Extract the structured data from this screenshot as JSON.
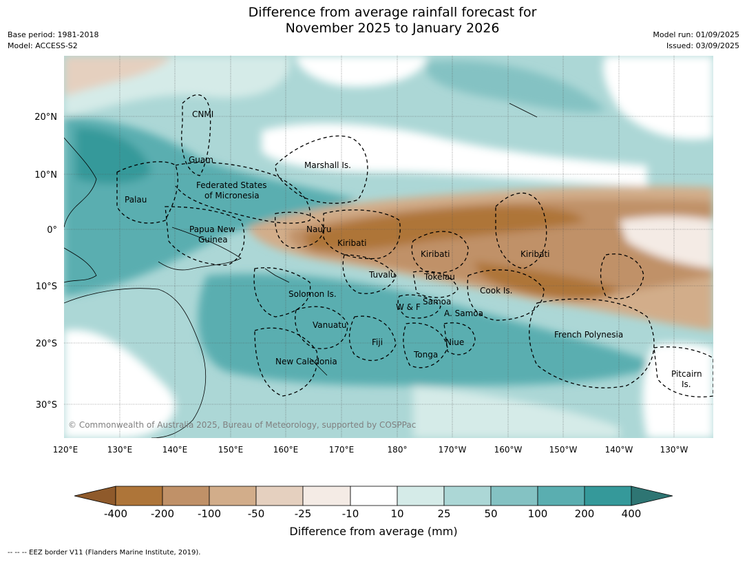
{
  "title": {
    "line1": "Difference from average rainfall forecast for",
    "line2": "November 2025 to January 2026"
  },
  "meta_left": {
    "base_period": "Base period: 1981-2018",
    "model": "Model: ACCESS-S2"
  },
  "meta_right": {
    "model_run": "Model run: 01/09/2025",
    "issued": "Issued: 03/09/2025"
  },
  "axes": {
    "lat_labels": [
      "20°N",
      "10°N",
      "0°",
      "10°S",
      "20°S",
      "30°S"
    ],
    "lon_labels": [
      "120°E",
      "130°E",
      "140°E",
      "150°E",
      "160°E",
      "170°E",
      "180°",
      "170°W",
      "160°W",
      "150°W",
      "140°W",
      "130°W"
    ]
  },
  "regions": [
    "CNMI",
    "Guam",
    "Marshall Is.",
    "Federated States",
    "of Micronesia",
    "Palau",
    "Papua New",
    "Guinea",
    "Nauru",
    "Kiribati",
    "Kiribati",
    "Kiribati",
    "Tuvalu",
    "Tokelau",
    "Cook Is.",
    "Solomon Is.",
    "W & F",
    "Samoa",
    "A. Samoa",
    "Vanuatu",
    "Fiji",
    "Niue",
    "Tonga",
    "French Polynesia",
    "New Caledonia",
    "Pitcairn",
    "Is."
  ],
  "copyright": "© Commonwealth of Australia 2025, Bureau of Meteorology, supported by COSPPac",
  "colorbar": {
    "ticks": [
      "-400",
      "-200",
      "-100",
      "-50",
      "-25",
      "-10",
      "10",
      "25",
      "50",
      "100",
      "200",
      "400"
    ],
    "colors": [
      "#8f5a2b",
      "#ae7539",
      "#c09168",
      "#d2ad8a",
      "#e5d0bf",
      "#f4ebe5",
      "#ffffff",
      "#d5ebe8",
      "#acd7d6",
      "#84c2c3",
      "#5aaeb0",
      "#35999a",
      "#2e7573"
    ],
    "label": "Difference from average (mm)"
  },
  "footnote": "--  --  -- EEZ border V11 (Flanders Marine Institute, 2019)."
}
